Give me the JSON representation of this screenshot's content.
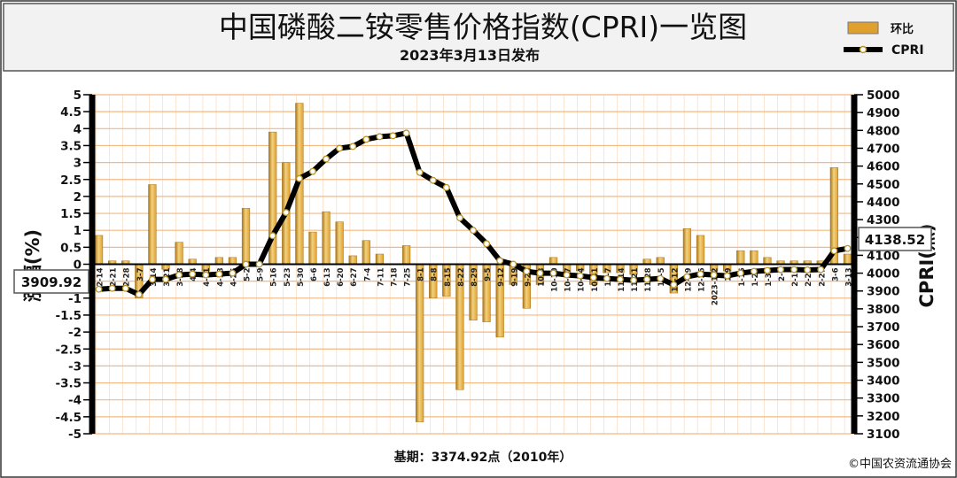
{
  "header": {
    "title": "中国磷酸二铵零售价格指数(CPRI)一览图",
    "subtitle": "2023年3月13日发布"
  },
  "legend": {
    "bar_label": "环比",
    "line_label": "CPRI"
  },
  "colors": {
    "bar": "#e0a030",
    "bar_light": "#f3d27e",
    "bar_dark": "#a87418",
    "grid_line": "#f4b882",
    "plot_background": "#ffffff",
    "line": "#000000",
    "marker_fill": "#ffffff",
    "marker_stroke": "#b8952a",
    "header_background": "#f2f2f2"
  },
  "footer": {
    "base_note": "基期：3374.92点（2010年）",
    "copyright": "©中国农资流通协会"
  },
  "chart_data": {
    "type": "bar",
    "secondary_type": "line",
    "title": "中国磷酸二铵零售价格指数(CPRI)一览图",
    "subtitle": "2023年3月13日发布",
    "ylabel": "涨幅(%)",
    "y2label": "CPRI(点)",
    "ylim": [
      -5,
      5
    ],
    "y2lim": [
      3100,
      5000
    ],
    "yticks": [
      "5",
      "4.5",
      "4",
      "3.5",
      "3",
      "2.5",
      "2",
      "1.5",
      "1",
      "0.5",
      "0",
      "-0.5",
      "-1",
      "-1.5",
      "-2",
      "-2.5",
      "-3",
      "-3.5",
      "-4",
      "-4.5",
      "-5"
    ],
    "y2ticks": [
      "5000",
      "4900",
      "4800",
      "4700",
      "4600",
      "4500",
      "4400",
      "4300",
      "4200",
      "4100",
      "4000",
      "3900",
      "3800",
      "3700",
      "3600",
      "3500",
      "3400",
      "3300",
      "3200",
      "3100"
    ],
    "legend_position": "top-right",
    "grid": true,
    "first_value_label": "3909.92",
    "last_value_label": "4138.52",
    "categories": [
      "2-14",
      "2-21",
      "2-28",
      "3-7",
      "3-14",
      "3-21",
      "3-28",
      "4-4",
      "4-11",
      "4-18",
      "4-25",
      "5-2",
      "5-9",
      "5-16",
      "5-23",
      "5-30",
      "6-6",
      "6-13",
      "6-20",
      "6-27",
      "7-4",
      "7-11",
      "7-18",
      "7-25",
      "8-1",
      "8-8",
      "8-15",
      "8-22",
      "8-29",
      "9-5",
      "9-12",
      "9-19",
      "9-26",
      "10-3",
      "10-10",
      "10-17",
      "10-24",
      "10-31",
      "11-7",
      "11-14",
      "11-21",
      "11-28",
      "12-5",
      "12-12",
      "12-19",
      "12-26",
      "2023-1-2",
      "1-9",
      "1-16",
      "1-23",
      "1-30",
      "2-6",
      "2-13",
      "2-20",
      "2-27",
      "3-6",
      "3-13"
    ],
    "series": [
      {
        "name": "环比",
        "type": "bar",
        "axis": "left",
        "values": [
          0.85,
          0.1,
          0.1,
          -1.0,
          2.35,
          -0.15,
          0.65,
          0.15,
          -0.2,
          0.2,
          0.2,
          1.65,
          0.0,
          3.9,
          3.0,
          4.75,
          0.95,
          1.55,
          1.25,
          0.25,
          0.7,
          0.3,
          0.0,
          0.55,
          -4.65,
          -1.0,
          -0.95,
          -3.7,
          -1.65,
          -1.7,
          -2.15,
          -0.6,
          -1.3,
          -0.6,
          0.2,
          -0.3,
          -0.2,
          -0.6,
          -0.25,
          -0.25,
          -0.3,
          0.15,
          0.2,
          -0.85,
          1.05,
          0.85,
          -0.2,
          -0.2,
          0.4,
          0.4,
          0.2,
          0.1,
          0.1,
          0.1,
          0.1,
          2.85,
          0.3
        ]
      },
      {
        "name": "CPRI",
        "type": "line",
        "axis": "right",
        "values": [
          3909.92,
          3915,
          3915,
          3880,
          3965,
          3965,
          3990,
          3995,
          3990,
          3995,
          4000,
          4050,
          4050,
          4210,
          4340,
          4530,
          4570,
          4640,
          4700,
          4710,
          4750,
          4765,
          4770,
          4785,
          4565,
          4520,
          4480,
          4310,
          4240,
          4165,
          4070,
          4050,
          4010,
          4000,
          4000,
          3990,
          3985,
          3975,
          3970,
          3965,
          3960,
          3965,
          3970,
          3935,
          3980,
          3995,
          3990,
          3985,
          4000,
          4010,
          4015,
          4020,
          4020,
          4018,
          4020,
          4125,
          4138.52
        ]
      }
    ]
  }
}
